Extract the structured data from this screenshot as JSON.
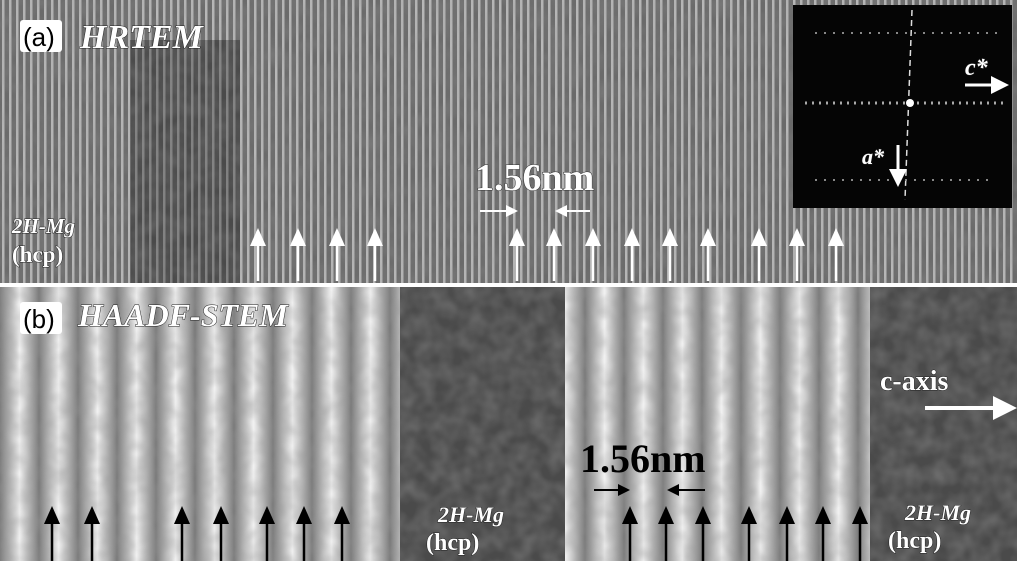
{
  "panel_a": {
    "label": "(a)",
    "title": "HRTEM",
    "phase": "2H-Mg",
    "structure": "(hcp)",
    "spacing": "1.56nm",
    "inset": {
      "c_star": "c*",
      "a_star": "a*"
    }
  },
  "panel_b": {
    "label": "(b)",
    "title": "HAADF-STEM",
    "axis": "c-axis",
    "spacing": "1.56nm",
    "phase_left": "2H-Mg",
    "structure_left": "(hcp)",
    "phase_right": "2H-Mg",
    "structure_right": "(hcp)"
  }
}
